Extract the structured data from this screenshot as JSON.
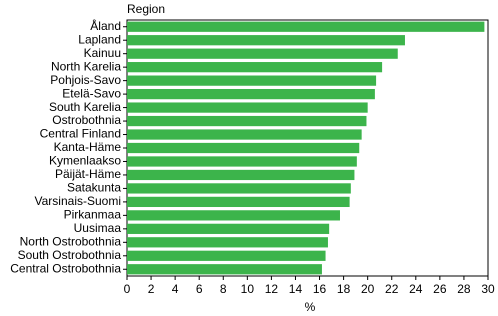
{
  "chart_data": {
    "type": "bar",
    "orientation": "horizontal",
    "y_label": "Region",
    "x_label": "%",
    "categories": [
      "Åland",
      "Lapland",
      "Kainuu",
      "North Karelia",
      "Pohjois-Savo",
      "Etelä-Savo",
      "South Karelia",
      "Ostrobothnia",
      "Central Finland",
      "Kanta-Häme",
      "Kymenlaakso",
      "Päijät-Häme",
      "Satakunta",
      "Varsinais-Suomi",
      "Pirkanmaa",
      "Uusimaa",
      "North Ostrobothnia",
      "South Ostrobothnia",
      "Central Ostrobothnia"
    ],
    "values": [
      29.7,
      23.1,
      22.5,
      21.2,
      20.7,
      20.6,
      20.0,
      19.9,
      19.5,
      19.3,
      19.1,
      18.9,
      18.6,
      18.5,
      17.7,
      16.8,
      16.7,
      16.5,
      16.2
    ],
    "color": "#3cb44b",
    "xlim": [
      0,
      30
    ],
    "xticks": [
      0,
      2,
      4,
      6,
      8,
      10,
      12,
      14,
      16,
      18,
      20,
      22,
      24,
      26,
      28,
      30
    ],
    "grid": false
  }
}
